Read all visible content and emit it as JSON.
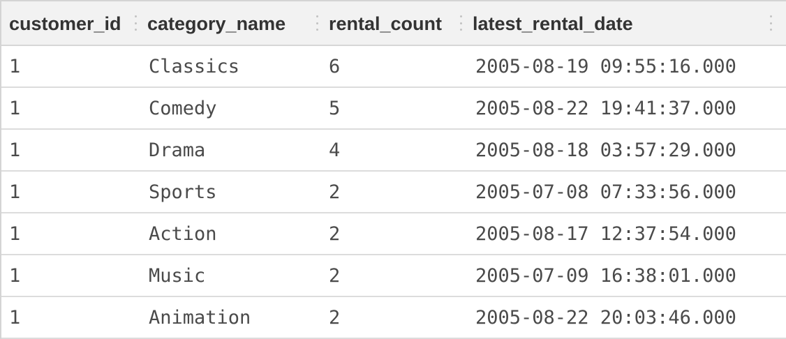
{
  "columns": [
    {
      "label": "customer_id"
    },
    {
      "label": "category_name"
    },
    {
      "label": "rental_count"
    },
    {
      "label": "latest_rental_date"
    }
  ],
  "rows": [
    {
      "customer_id": "1",
      "category_name": "Classics",
      "rental_count": "6",
      "latest_rental_date": "2005-08-19 09:55:16.000"
    },
    {
      "customer_id": "1",
      "category_name": "Comedy",
      "rental_count": "5",
      "latest_rental_date": "2005-08-22 19:41:37.000"
    },
    {
      "customer_id": "1",
      "category_name": "Drama",
      "rental_count": "4",
      "latest_rental_date": "2005-08-18 03:57:29.000"
    },
    {
      "customer_id": "1",
      "category_name": "Sports",
      "rental_count": "2",
      "latest_rental_date": "2005-07-08 07:33:56.000"
    },
    {
      "customer_id": "1",
      "category_name": "Action",
      "rental_count": "2",
      "latest_rental_date": "2005-08-17 12:37:54.000"
    },
    {
      "customer_id": "1",
      "category_name": "Music",
      "rental_count": "2",
      "latest_rental_date": "2005-07-09 16:38:01.000"
    },
    {
      "customer_id": "1",
      "category_name": "Animation",
      "rental_count": "2",
      "latest_rental_date": "2005-08-22 20:03:46.000"
    }
  ]
}
